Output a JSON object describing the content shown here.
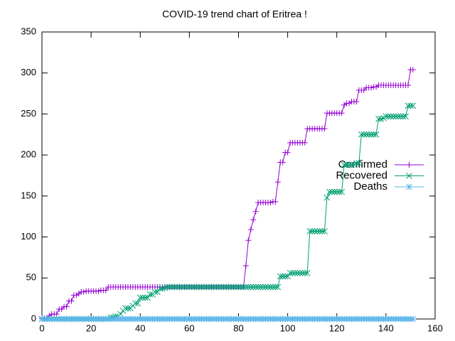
{
  "chart_data": {
    "type": "line",
    "title": "COVID-19 trend chart of Eritrea !",
    "x": [
      0,
      1,
      2,
      3,
      4,
      5,
      6,
      7,
      8,
      9,
      10,
      11,
      12,
      13,
      14,
      15,
      16,
      17,
      18,
      19,
      20,
      21,
      22,
      23,
      24,
      25,
      26,
      27,
      28,
      29,
      30,
      31,
      32,
      33,
      34,
      35,
      36,
      37,
      38,
      39,
      40,
      41,
      42,
      43,
      44,
      45,
      46,
      47,
      48,
      49,
      50,
      51,
      52,
      53,
      54,
      55,
      56,
      57,
      58,
      59,
      60,
      61,
      62,
      63,
      64,
      65,
      66,
      67,
      68,
      69,
      70,
      71,
      72,
      73,
      74,
      75,
      76,
      77,
      78,
      79,
      80,
      81,
      82,
      83,
      84,
      85,
      86,
      87,
      88,
      89,
      90,
      91,
      92,
      93,
      94,
      95,
      96,
      97,
      98,
      99,
      100,
      101,
      102,
      103,
      104,
      105,
      106,
      107,
      108,
      109,
      110,
      111,
      112,
      113,
      114,
      115,
      116,
      117,
      118,
      119,
      120,
      121,
      122,
      123,
      124,
      125,
      126,
      127,
      128,
      129,
      130,
      131,
      132,
      133,
      134,
      135,
      136,
      137,
      138,
      139,
      140,
      141,
      142,
      143,
      144,
      145,
      146,
      147,
      148,
      149,
      150,
      151
    ],
    "series": [
      {
        "name": "Confirmed",
        "color": "#9400d3",
        "marker": "plus",
        "values": [
          1,
          1,
          1,
          4,
          6,
          6,
          6,
          12,
          12,
          15,
          15,
          22,
          22,
          29,
          29,
          31,
          33,
          33,
          34,
          34,
          34,
          34,
          34,
          34,
          35,
          35,
          35,
          39,
          39,
          39,
          39,
          39,
          39,
          39,
          39,
          39,
          39,
          39,
          39,
          39,
          39,
          39,
          39,
          39,
          39,
          39,
          39,
          39,
          39,
          39,
          39,
          39,
          39,
          39,
          39,
          39,
          39,
          39,
          39,
          39,
          39,
          39,
          39,
          39,
          39,
          39,
          39,
          39,
          39,
          39,
          39,
          39,
          39,
          39,
          39,
          39,
          39,
          39,
          39,
          39,
          39,
          39,
          39,
          65,
          96,
          109,
          121,
          131,
          142,
          142,
          142,
          142,
          142,
          142,
          143,
          143,
          167,
          191,
          191,
          203,
          203,
          215,
          215,
          215,
          215,
          215,
          215,
          215,
          232,
          232,
          232,
          232,
          232,
          232,
          232,
          232,
          251,
          251,
          251,
          251,
          251,
          251,
          251,
          261,
          263,
          263,
          265,
          265,
          265,
          279,
          279,
          279,
          282,
          282,
          282,
          283,
          283,
          285,
          285,
          285,
          285,
          285,
          285,
          285,
          285,
          285,
          285,
          285,
          285,
          285,
          304,
          304
        ]
      },
      {
        "name": "Recovered",
        "color": "#009e73",
        "marker": "cross",
        "values": [
          0,
          0,
          0,
          0,
          0,
          0,
          0,
          0,
          0,
          0,
          0,
          0,
          0,
          0,
          0,
          0,
          0,
          0,
          0,
          0,
          0,
          0,
          0,
          0,
          0,
          0,
          0,
          0,
          2,
          2,
          3,
          3,
          6,
          10,
          13,
          13,
          13,
          16,
          19,
          19,
          26,
          26,
          26,
          26,
          30,
          30,
          33,
          33,
          37,
          37,
          38,
          39,
          39,
          39,
          39,
          39,
          39,
          39,
          39,
          39,
          39,
          39,
          39,
          39,
          39,
          39,
          39,
          39,
          39,
          39,
          39,
          39,
          39,
          39,
          39,
          39,
          39,
          39,
          39,
          39,
          39,
          39,
          39,
          39,
          39,
          39,
          39,
          39,
          39,
          39,
          39,
          39,
          39,
          39,
          39,
          39,
          39,
          52,
          52,
          52,
          52,
          56,
          56,
          56,
          56,
          56,
          56,
          56,
          56,
          107,
          107,
          107,
          107,
          107,
          107,
          107,
          148,
          155,
          155,
          155,
          155,
          155,
          155,
          188,
          188,
          188,
          188,
          188,
          190,
          190,
          225,
          225,
          225,
          225,
          225,
          225,
          225,
          244,
          244,
          245,
          247,
          247,
          247,
          247,
          247,
          247,
          247,
          247,
          247,
          260,
          260,
          260
        ]
      },
      {
        "name": "Deaths",
        "color": "#56b4e9",
        "marker": "star",
        "values": [
          0,
          0,
          0,
          0,
          0,
          0,
          0,
          0,
          0,
          0,
          0,
          0,
          0,
          0,
          0,
          0,
          0,
          0,
          0,
          0,
          0,
          0,
          0,
          0,
          0,
          0,
          0,
          0,
          0,
          0,
          0,
          0,
          0,
          0,
          0,
          0,
          0,
          0,
          0,
          0,
          0,
          0,
          0,
          0,
          0,
          0,
          0,
          0,
          0,
          0,
          0,
          0,
          0,
          0,
          0,
          0,
          0,
          0,
          0,
          0,
          0,
          0,
          0,
          0,
          0,
          0,
          0,
          0,
          0,
          0,
          0,
          0,
          0,
          0,
          0,
          0,
          0,
          0,
          0,
          0,
          0,
          0,
          0,
          0,
          0,
          0,
          0,
          0,
          0,
          0,
          0,
          0,
          0,
          0,
          0,
          0,
          0,
          0,
          0,
          0,
          0,
          0,
          0,
          0,
          0,
          0,
          0,
          0,
          0,
          0,
          0,
          0,
          0,
          0,
          0,
          0,
          0,
          0,
          0,
          0,
          0,
          0,
          0,
          0,
          0,
          0,
          0,
          0,
          0,
          0,
          0,
          0,
          0,
          0,
          0,
          0,
          0,
          0,
          0,
          0,
          0,
          0,
          0,
          0,
          0,
          0,
          0,
          0,
          0,
          0,
          0,
          0
        ]
      }
    ],
    "xlim": [
      0,
      160
    ],
    "xticks": [
      0,
      20,
      40,
      60,
      80,
      100,
      120,
      140,
      160
    ],
    "ylim": [
      0,
      350
    ],
    "yticks": [
      0,
      50,
      100,
      150,
      200,
      250,
      300,
      350
    ],
    "legend": "right"
  }
}
